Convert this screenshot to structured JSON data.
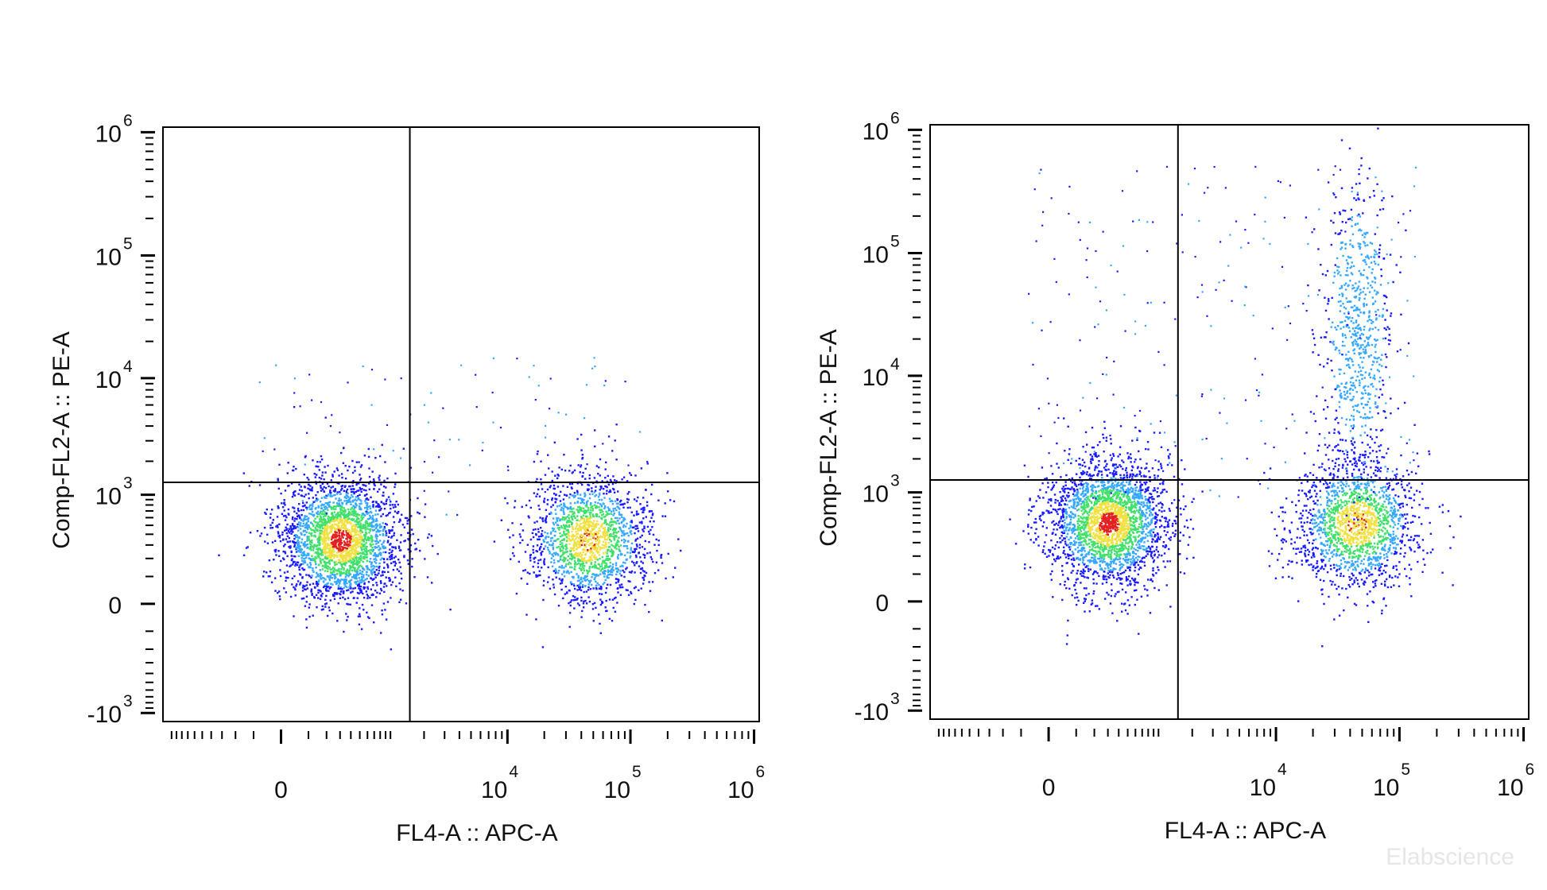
{
  "chart_data": [
    {
      "type": "scatter",
      "subtype": "flow-cytometry pseudocolor density plot",
      "title": "",
      "xlabel": "FL4-A :: APC-A",
      "ylabel": "Comp-FL2-A :: PE-A",
      "x_scale": "biexponential",
      "y_scale": "biexponential",
      "x_ticks": [
        {
          "value": 0,
          "base": "0",
          "exp": ""
        },
        {
          "value": 10000,
          "base": "10",
          "exp": "4"
        },
        {
          "value": 100000,
          "base": "10",
          "exp": "5"
        },
        {
          "value": 1000000,
          "base": "10",
          "exp": "6"
        }
      ],
      "y_ticks": [
        {
          "value": -1000,
          "base": "-10",
          "exp": "3"
        },
        {
          "value": 0,
          "base": "0",
          "exp": ""
        },
        {
          "value": 1000,
          "base": "10",
          "exp": "3"
        },
        {
          "value": 10000,
          "base": "10",
          "exp": "4"
        },
        {
          "value": 100000,
          "base": "10",
          "exp": "5"
        },
        {
          "value": 1000000,
          "base": "10",
          "exp": "6"
        }
      ],
      "gate": {
        "x": 1500,
        "y": 1300
      },
      "populations": [
        {
          "center_x": 300,
          "center_y": 350,
          "weight": "large"
        },
        {
          "center_x": 45000,
          "center_y": 360,
          "weight": "medium"
        }
      ],
      "sparse_events_above_gate": true
    },
    {
      "type": "scatter",
      "subtype": "flow-cytometry pseudocolor density plot",
      "title": "",
      "xlabel": "FL4-A :: APC-A",
      "ylabel": "Comp-FL2-A :: PE-A",
      "x_scale": "biexponential",
      "y_scale": "biexponential",
      "x_ticks": [
        {
          "value": 0,
          "base": "0",
          "exp": ""
        },
        {
          "value": 10000,
          "base": "10",
          "exp": "4"
        },
        {
          "value": 100000,
          "base": "10",
          "exp": "5"
        },
        {
          "value": 1000000,
          "base": "10",
          "exp": "6"
        }
      ],
      "y_ticks": [
        {
          "value": -1000,
          "base": "-10",
          "exp": "3"
        },
        {
          "value": 0,
          "base": "0",
          "exp": ""
        },
        {
          "value": 1000,
          "base": "10",
          "exp": "3"
        },
        {
          "value": 10000,
          "base": "10",
          "exp": "4"
        },
        {
          "value": 100000,
          "base": "10",
          "exp": "5"
        },
        {
          "value": 1000000,
          "base": "10",
          "exp": "6"
        }
      ],
      "gate": {
        "x": 1500,
        "y": 1300
      },
      "populations": [
        {
          "center_x": 300,
          "center_y": 500,
          "weight": "large"
        },
        {
          "center_x": 45000,
          "center_y": 500,
          "weight": "medium"
        },
        {
          "center_x": 45000,
          "center_y": 25000,
          "weight": "small",
          "elongated": "vertical"
        }
      ],
      "sparse_events_above_gate": true
    }
  ],
  "watermark": "Elabscience",
  "colors": {
    "low_density": "#1a1aff",
    "mid_low": "#35a8ff",
    "mid": "#40e06a",
    "high": "#f0e040",
    "peak": "#e22020",
    "axis": "#000000"
  }
}
